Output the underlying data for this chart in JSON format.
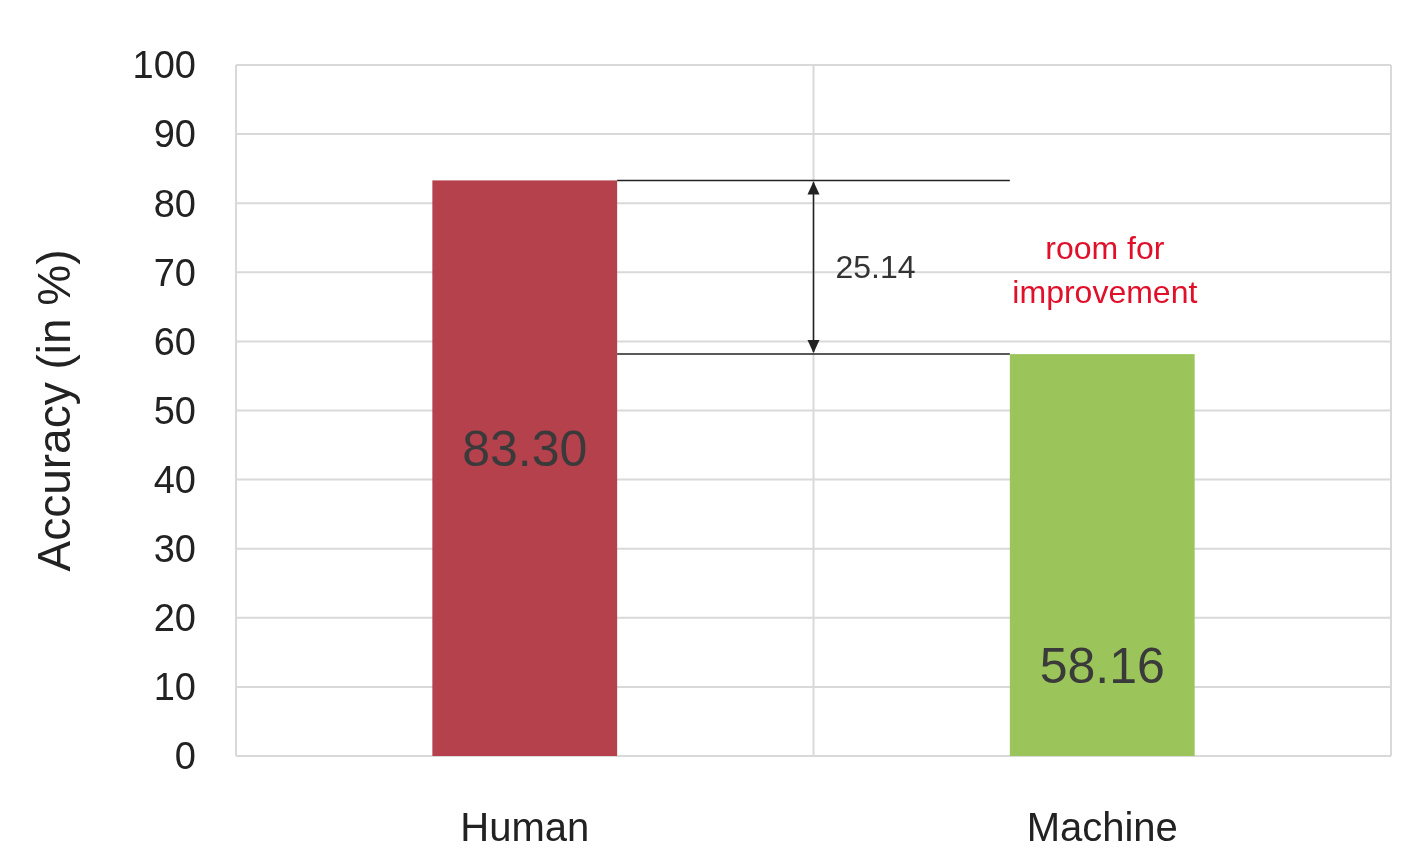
{
  "chart_data": {
    "type": "bar",
    "ylabel": "Accuracy (in %)",
    "categories": [
      "Human",
      "Machine"
    ],
    "values": [
      83.3,
      58.16
    ],
    "colors": [
      "#b5414c",
      "#9bc45a"
    ],
    "ylim": [
      0,
      100
    ],
    "yticks": [
      0,
      10,
      20,
      30,
      40,
      50,
      60,
      70,
      80,
      90,
      100
    ],
    "grid": true,
    "value_labels": [
      "83.30",
      "58.16"
    ],
    "annotations": [
      "25.14",
      "room for improvement"
    ]
  }
}
